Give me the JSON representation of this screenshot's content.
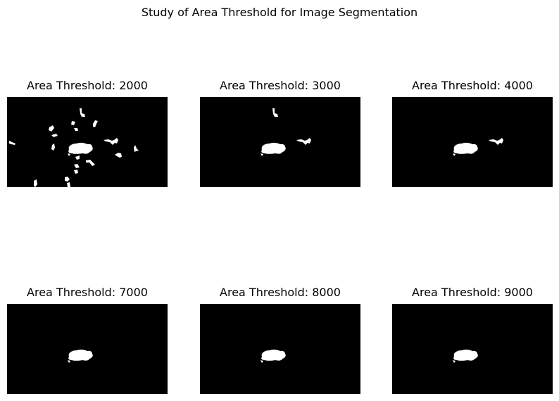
{
  "figure": {
    "title": "Study of Area Threshold for Image Segmentation"
  },
  "chart_data": {
    "type": "image-grid",
    "title": "Study of Area Threshold for Image Segmentation",
    "background_color": "#000000",
    "foreground_color": "#ffffff",
    "grid": {
      "rows": 2,
      "cols": 3
    },
    "panels": [
      {
        "title": "Area Threshold: 2000",
        "threshold": 2000,
        "blobs": [
          "main",
          "b1",
          "b2",
          "b3",
          "b4",
          "b5",
          "b6",
          "b7",
          "b8",
          "b9",
          "b10",
          "b11",
          "b12",
          "b13",
          "b14",
          "b15",
          "b16",
          "b17"
        ]
      },
      {
        "title": "Area Threshold: 3000",
        "threshold": 3000,
        "blobs": [
          "main",
          "b2",
          "b10"
        ]
      },
      {
        "title": "Area Threshold: 4000",
        "threshold": 4000,
        "blobs": [
          "main",
          "b10"
        ]
      },
      {
        "title": "Area Threshold: 7000",
        "threshold": 7000,
        "blobs": [
          "main"
        ]
      },
      {
        "title": "Area Threshold: 8000",
        "threshold": 8000,
        "blobs": [
          "main"
        ]
      },
      {
        "title": "Area Threshold: 9000",
        "threshold": 9000,
        "blobs": [
          "main"
        ]
      }
    ]
  }
}
